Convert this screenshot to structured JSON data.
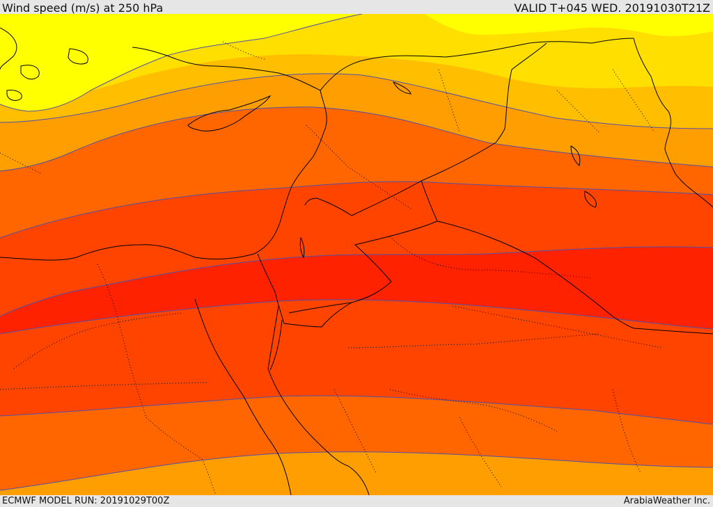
{
  "header": {
    "title": "Wind speed (m/s) at 250 hPa",
    "valid_time": "VALID T+045 WED. 20191030T21Z"
  },
  "footer": {
    "model_run": "ECMWF MODEL RUN: 20191029T00Z",
    "credit": "ArabiaWeather Inc."
  },
  "colors": {
    "frame_background": "#e6e6e6",
    "band_1": "#ffff00",
    "band_2": "#ffdf00",
    "band_3": "#ffbf00",
    "band_4": "#ff9e00",
    "band_5": "#ff6600",
    "band_6": "#ff4400",
    "band_7": "#ff2200",
    "contour_line": "#5050aa",
    "border_line": "#000000"
  }
}
